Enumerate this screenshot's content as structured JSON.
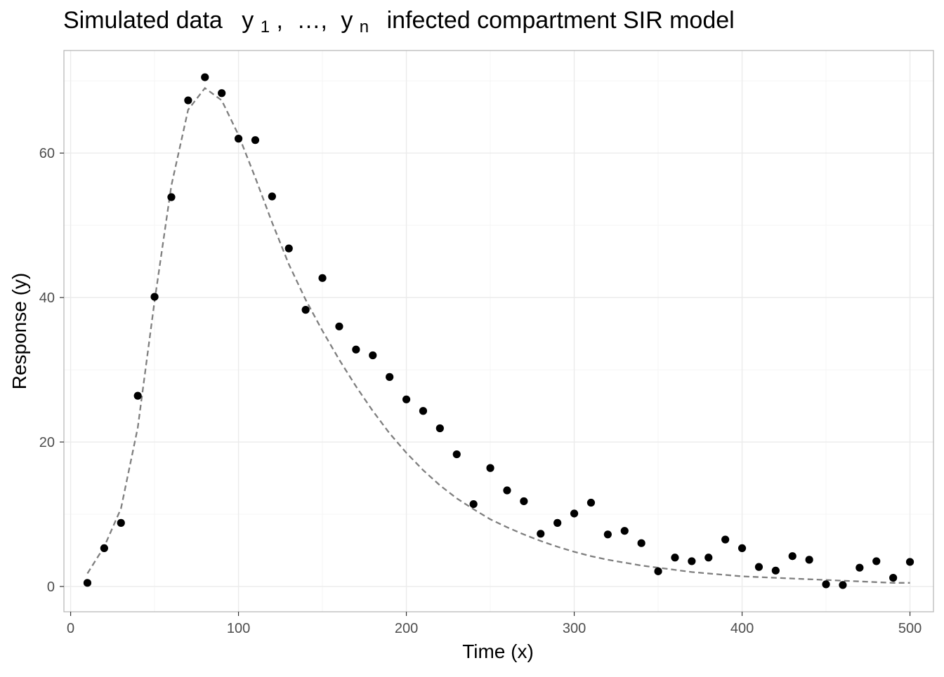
{
  "title": {
    "prefix": "Simulated data",
    "var1": "y",
    "sub1": "1",
    "comma1": ",",
    "ellipsis": "…,",
    "var2": "y",
    "sub2": "n",
    "suffix": "infected compartment SIR model"
  },
  "chart_data": {
    "type": "scatter",
    "xlabel": "Time (x)",
    "ylabel": "Response (y)",
    "xlim": [
      -4,
      514
    ],
    "ylim": [
      -3.5,
      74.2
    ],
    "xticks": [
      0,
      100,
      200,
      300,
      400,
      500
    ],
    "yticks": [
      0,
      20,
      40,
      60
    ],
    "grid": true,
    "colors": {
      "points": "#000000",
      "curve": "#7f7f7f",
      "grid_major": "#ebebeb",
      "grid_minor": "#f5f5f5",
      "panel_border": "#b3b3b3"
    },
    "series": [
      {
        "kind": "points",
        "x": [
          10,
          20,
          30,
          40,
          50,
          60,
          70,
          80,
          90,
          100,
          110,
          120,
          130,
          140,
          150,
          160,
          170,
          180,
          190,
          200,
          210,
          220,
          230,
          240,
          250,
          260,
          270,
          280,
          290,
          300,
          310,
          320,
          330,
          340,
          350,
          360,
          370,
          380,
          390,
          400,
          410,
          420,
          430,
          440,
          450,
          460,
          470,
          480,
          490,
          500
        ],
        "y": [
          0.5,
          5.3,
          8.8,
          26.4,
          40.1,
          53.9,
          67.3,
          70.5,
          68.3,
          62.0,
          61.8,
          54.0,
          46.8,
          38.3,
          42.7,
          36.0,
          32.8,
          32.0,
          29.0,
          25.9,
          24.3,
          21.9,
          18.3,
          11.4,
          16.4,
          13.3,
          11.8,
          7.3,
          8.8,
          10.1,
          11.6,
          7.2,
          7.7,
          6.0,
          2.1,
          4.0,
          3.5,
          4.0,
          6.5,
          5.3,
          2.7,
          2.2,
          4.2,
          3.7,
          0.3,
          0.2,
          2.6,
          3.5,
          1.2,
          3.4
        ]
      },
      {
        "kind": "curve",
        "x": [
          10,
          20,
          30,
          40,
          50,
          60,
          70,
          80,
          90,
          100,
          110,
          120,
          130,
          140,
          150,
          160,
          170,
          180,
          190,
          200,
          210,
          220,
          230,
          240,
          250,
          260,
          270,
          280,
          290,
          300,
          310,
          320,
          330,
          340,
          350,
          360,
          370,
          380,
          390,
          400,
          410,
          420,
          430,
          440,
          450,
          460,
          470,
          480,
          490,
          500
        ],
        "y": [
          1.8,
          5.5,
          10.8,
          22.0,
          39.5,
          55.5,
          66.0,
          69.0,
          67.3,
          62.5,
          56.6,
          50.4,
          44.6,
          39.7,
          35.4,
          31.4,
          27.7,
          24.3,
          21.2,
          18.5,
          16.1,
          14.0,
          12.2,
          10.7,
          9.3,
          8.2,
          7.2,
          6.3,
          5.5,
          4.8,
          4.2,
          3.7,
          3.3,
          2.9,
          2.6,
          2.3,
          2.0,
          1.8,
          1.6,
          1.4,
          1.3,
          1.2,
          1.1,
          1.0,
          0.9,
          0.8,
          0.7,
          0.6,
          0.5,
          0.5
        ]
      }
    ]
  }
}
